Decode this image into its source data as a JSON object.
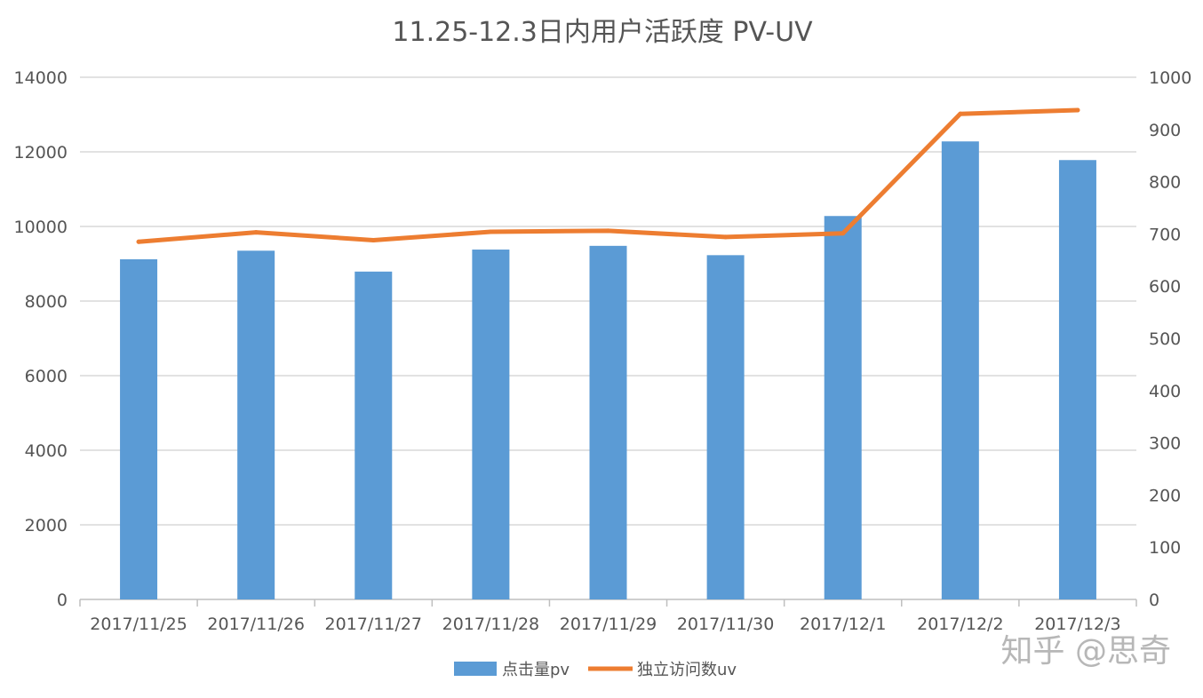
{
  "watermark": "知乎 @思奇",
  "colors": {
    "bar": "#5B9BD5",
    "line": "#ED7D31",
    "grid": "#D9D9D9",
    "axis": "#BFBFBF",
    "text": "#555555"
  },
  "chart_data": {
    "type": "bar",
    "title": "11.25-12.3日内用户活跃度   PV-UV",
    "categories": [
      "2017/11/25",
      "2017/11/26",
      "2017/11/27",
      "2017/11/28",
      "2017/11/29",
      "2017/11/30",
      "2017/12/1",
      "2017/12/2",
      "2017/12/3"
    ],
    "series": [
      {
        "name": "点击量pv",
        "type": "bar",
        "axis": "left",
        "values": [
          9120,
          9350,
          8790,
          9380,
          9480,
          9230,
          10280,
          12280,
          11780
        ]
      },
      {
        "name": "独立访问数uv",
        "type": "line",
        "axis": "right",
        "values": [
          685,
          703,
          688,
          704,
          706,
          694,
          701,
          930,
          937
        ]
      }
    ],
    "y_left": {
      "min": 0,
      "max": 14000,
      "ticks": [
        0,
        2000,
        4000,
        6000,
        8000,
        10000,
        12000,
        14000
      ]
    },
    "y_right": {
      "min": 0,
      "max": 1000,
      "ticks": [
        0,
        100,
        200,
        300,
        400,
        500,
        600,
        700,
        800,
        900,
        1000
      ]
    },
    "grid": true,
    "legend_position": "bottom"
  }
}
